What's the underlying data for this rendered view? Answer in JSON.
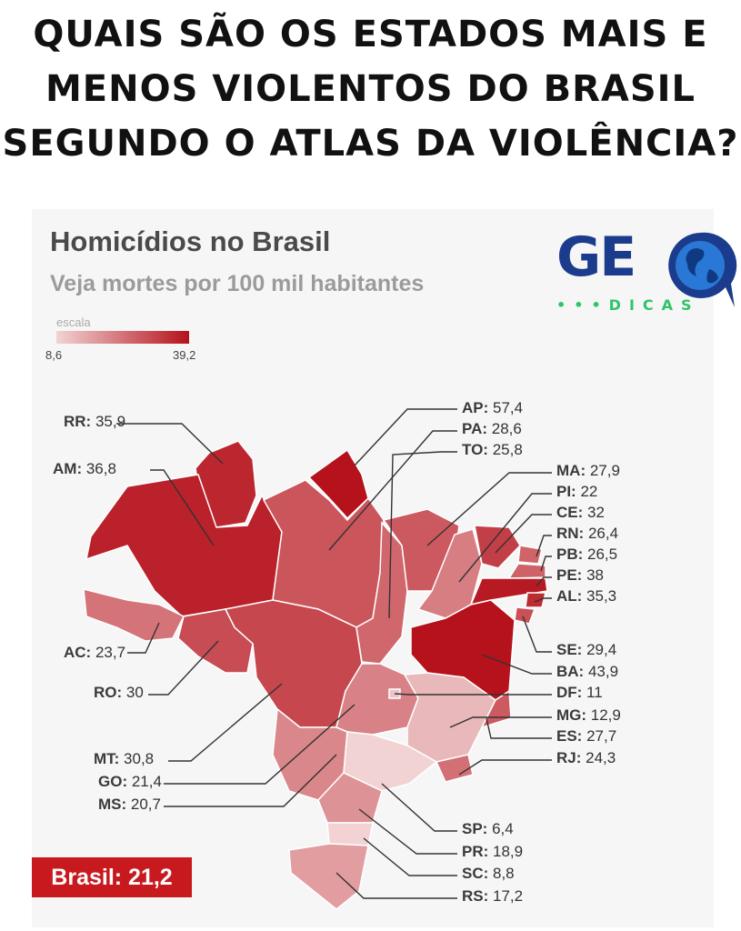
{
  "headline": [
    "QUAIS SÃO OS ESTADOS MAIS E",
    "MENOS VIOLENTOS DO BRASIL",
    "SEGUNDO O ATLAS DA VIOLÊNCIA?"
  ],
  "map": {
    "title": "Homicídios no Brasil",
    "subtitle": "Veja mortes por 100 mil habitantes",
    "scale": {
      "label": "escala",
      "min": "8,6",
      "max": "39,2",
      "min_value": 8.6,
      "max_value": 39.2,
      "color_low": "#f2d3d4",
      "color_high": "#b5121b"
    }
  },
  "logo": {
    "text": "GE",
    "sub": "•••DICAS",
    "color": "#1b3c8c",
    "accent": "#2ec46b"
  },
  "states": {
    "AP": {
      "abbr": "AP:",
      "value": "57,4",
      "num": 57.4
    },
    "PA": {
      "abbr": "PA:",
      "value": "28,6",
      "num": 28.6
    },
    "TO": {
      "abbr": "TO:",
      "value": "25,8",
      "num": 25.8
    },
    "MA": {
      "abbr": "MA:",
      "value": "27,9",
      "num": 27.9
    },
    "PI": {
      "abbr": "PI:",
      "value": "22",
      "num": 22
    },
    "CE": {
      "abbr": "CE:",
      "value": "32",
      "num": 32
    },
    "RN": {
      "abbr": "RN:",
      "value": "26,4",
      "num": 26.4
    },
    "PB": {
      "abbr": "PB:",
      "value": "26,5",
      "num": 26.5
    },
    "PE": {
      "abbr": "PE:",
      "value": "38",
      "num": 38
    },
    "AL": {
      "abbr": "AL:",
      "value": "35,3",
      "num": 35.3
    },
    "SE": {
      "abbr": "SE:",
      "value": "29,4",
      "num": 29.4
    },
    "BA": {
      "abbr": "BA:",
      "value": "43,9",
      "num": 43.9
    },
    "DF": {
      "abbr": "DF:",
      "value": "11",
      "num": 11
    },
    "MG": {
      "abbr": "MG:",
      "value": "12,9",
      "num": 12.9
    },
    "ES": {
      "abbr": "ES:",
      "value": "27,7",
      "num": 27.7
    },
    "RJ": {
      "abbr": "RJ:",
      "value": "24,3",
      "num": 24.3
    },
    "SP": {
      "abbr": "SP:",
      "value": "6,4",
      "num": 6.4
    },
    "PR": {
      "abbr": "PR:",
      "value": "18,9",
      "num": 18.9
    },
    "SC": {
      "abbr": "SC:",
      "value": "8,8",
      "num": 8.8
    },
    "RS": {
      "abbr": "RS:",
      "value": "17,2",
      "num": 17.2
    },
    "RR": {
      "abbr": "RR:",
      "value": "35,9",
      "num": 35.9
    },
    "AM": {
      "abbr": "AM:",
      "value": "36,8",
      "num": 36.8
    },
    "AC": {
      "abbr": "AC:",
      "value": "23,7",
      "num": 23.7
    },
    "RO": {
      "abbr": "RO:",
      "value": "30",
      "num": 30
    },
    "MT": {
      "abbr": "MT:",
      "value": "30,8",
      "num": 30.8
    },
    "GO": {
      "abbr": "GO:",
      "value": "21,4",
      "num": 21.4
    },
    "MS": {
      "abbr": "MS:",
      "value": "20,7",
      "num": 20.7
    }
  },
  "brasil": {
    "text": "Brasil: 21,2"
  }
}
